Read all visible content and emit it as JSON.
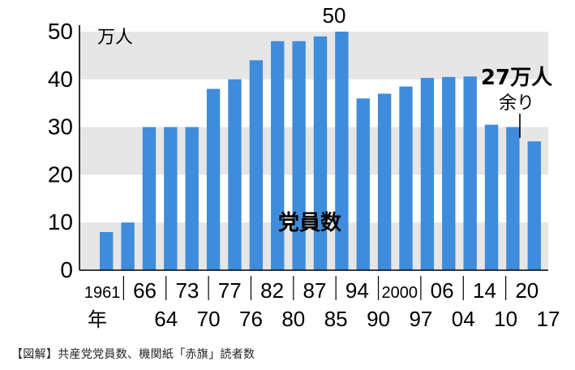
{
  "caption": "【図解】共産党党員数、機関紙「赤旗」読者数",
  "chart_data": {
    "type": "bar",
    "unit": "万人",
    "ylim": [
      0,
      50
    ],
    "yticks": [
      0,
      10,
      20,
      30,
      40,
      50
    ],
    "bar_color": "#3e8cdb",
    "band_color": "#e6e6e6",
    "series_label": "党員数",
    "values": [
      8,
      10,
      30,
      30,
      30,
      38,
      40,
      44,
      48,
      48,
      49,
      50,
      36,
      37,
      38.5,
      40.3,
      40.5,
      40.6,
      30.5,
      30,
      27
    ],
    "row1_labels": [
      "1961",
      "66",
      "73",
      "77",
      "82",
      "87",
      "94",
      "2000",
      "06",
      "14",
      "20"
    ],
    "row2_labels": [
      "年",
      "64",
      "70",
      "76",
      "80",
      "85",
      "90",
      "97",
      "04",
      "10",
      "17"
    ],
    "annotations": {
      "peak": "50",
      "last_value": "27万人",
      "last_suffix": "余り"
    }
  }
}
